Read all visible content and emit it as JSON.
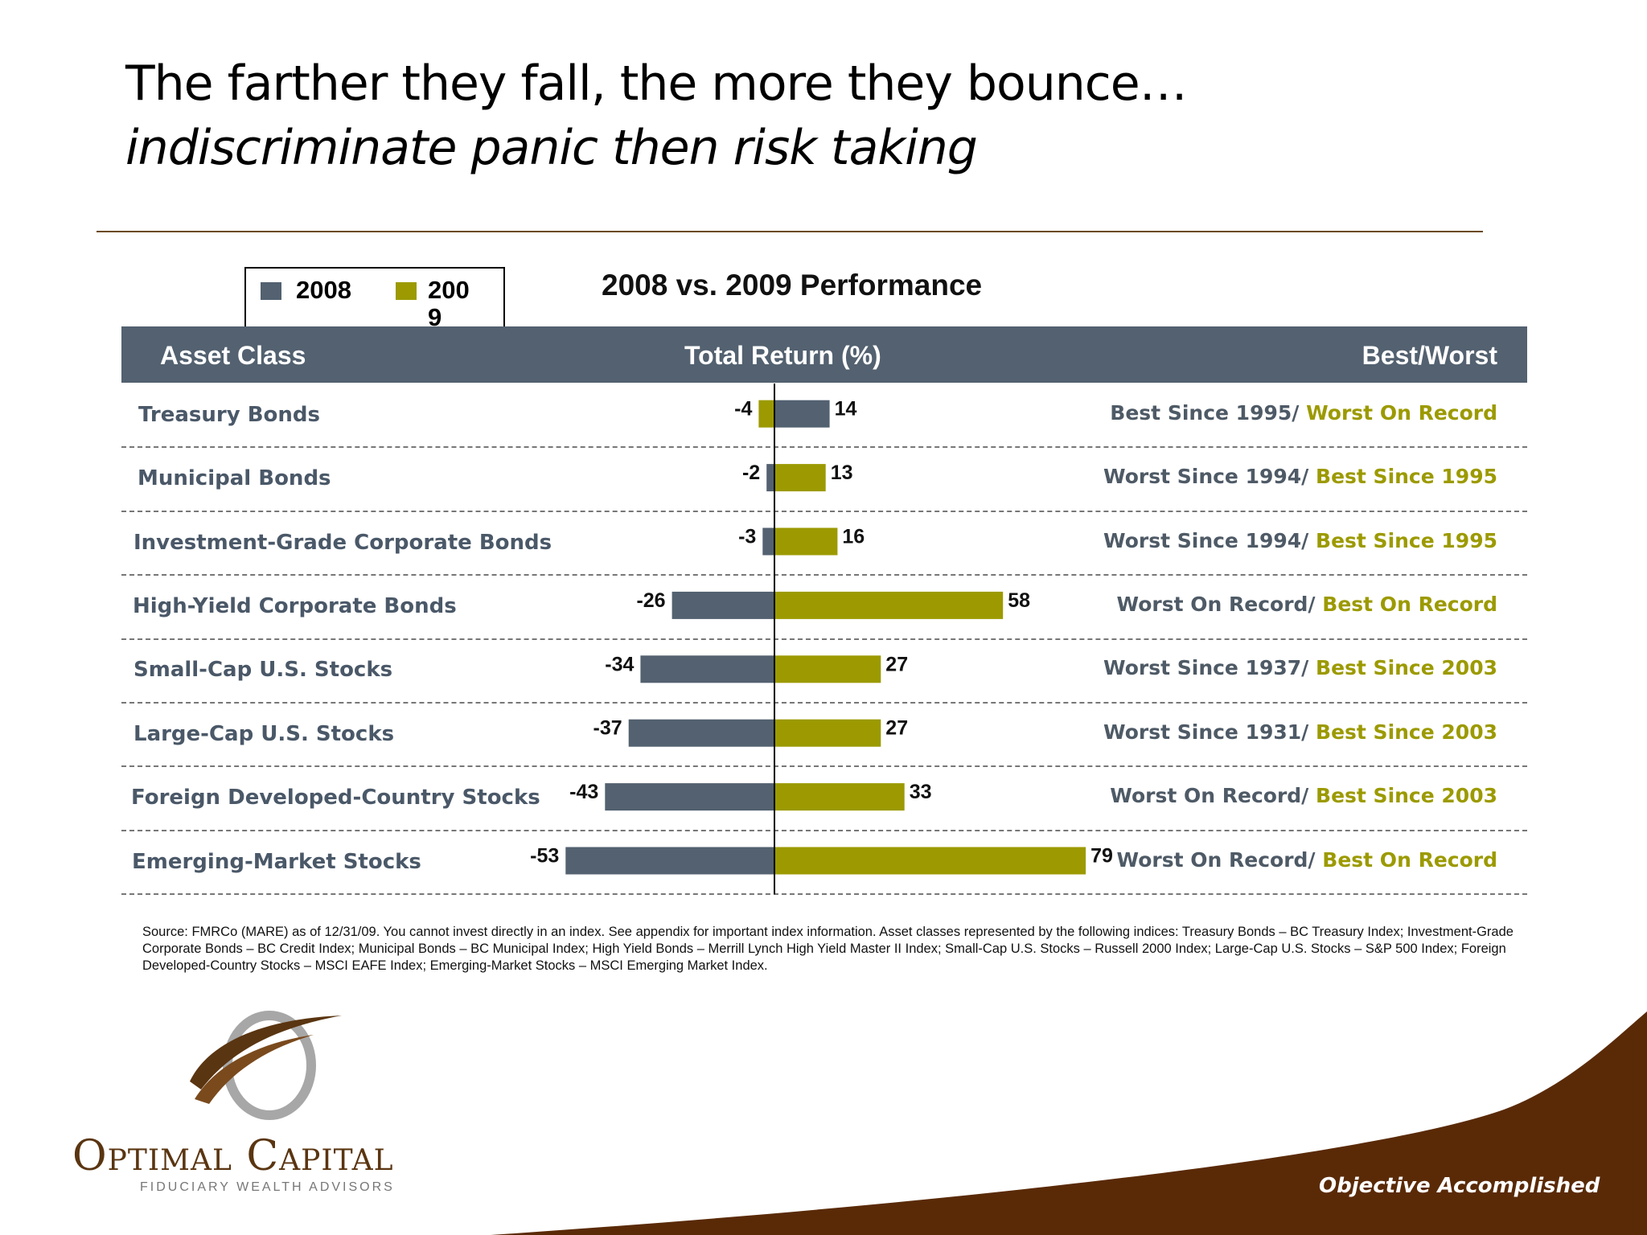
{
  "slide": {
    "title_line1": "The farther they fall, the more they bounce…",
    "title_line2": "indiscriminate panic then risk taking"
  },
  "table": {
    "header_asset": "Asset Class",
    "header_return": "Total Return (%)",
    "header_bestworst": "Best/Worst"
  },
  "legend": {
    "label_2008": "2008",
    "label_2009_part1": "200",
    "label_2009_part2": "9"
  },
  "colors": {
    "series_2008": "#536170",
    "series_2009": "#9c9a00",
    "header_bg": "#536170",
    "brand_brown": "#5a3511"
  },
  "chart_data": {
    "type": "bar",
    "title": "2008 vs. 2009 Performance",
    "categories": [
      "Treasury Bonds",
      "Municipal Bonds",
      "Investment-Grade Corporate Bonds",
      "High-Yield Corporate Bonds",
      "Small-Cap U.S. Stocks",
      "Large-Cap U.S. Stocks",
      "Foreign Developed-Country Stocks",
      "Emerging-Market Stocks"
    ],
    "series": [
      {
        "name": "2008",
        "values": [
          14,
          -2,
          -3,
          -26,
          -34,
          -37,
          -43,
          -53
        ]
      },
      {
        "name": "2009",
        "values": [
          -4,
          13,
          16,
          58,
          27,
          27,
          33,
          79
        ]
      }
    ],
    "labels_left": [
      "-4",
      "-2",
      "-3",
      "-26",
      "-34",
      "-37",
      "-43",
      "-53"
    ],
    "labels_right": [
      "14",
      "13",
      "16",
      "58",
      "27",
      "27",
      "33",
      "79"
    ],
    "best_worst": [
      [
        "Best Since 1995/ ",
        "Worst On Record"
      ],
      [
        "Worst Since 1994/ ",
        "Best Since 1995"
      ],
      [
        "Worst Since 1994/ ",
        "Best Since 1995"
      ],
      [
        "Worst On Record/ ",
        "Best On Record"
      ],
      [
        "Worst Since 1937/ ",
        "Best Since 2003"
      ],
      [
        "Worst Since 1931/ ",
        "Best Since 2003"
      ],
      [
        "Worst On Record/ ",
        "Best Since 2003"
      ],
      [
        "Worst On Record/ ",
        "Best On Record"
      ]
    ],
    "orientation": "horizontal",
    "legend_position": "top-left"
  },
  "source": {
    "text": "Source: FMRCo (MARE) as of 12/31/09. You cannot invest directly in an index. See appendix for important index information. Asset classes represented by the following indices: Treasury Bonds – BC Treasury Index; Investment-Grade Corporate Bonds – BC Credit Index; Municipal Bonds – BC Municipal Index; High Yield Bonds – Merrill Lynch High Yield Master II Index; Small-Cap U.S. Stocks – Russell 2000 Index; Large-Cap U.S. Stocks – S&P 500 Index; Foreign Developed-Country Stocks – MSCI EAFE Index; Emerging-Market Stocks – MSCI Emerging Market Index."
  },
  "logo": {
    "name": "Optimal Capital",
    "tagline": "FIDUCIARY WEALTH ADVISORS"
  },
  "footer": {
    "tagline": "Objective Accomplished"
  }
}
